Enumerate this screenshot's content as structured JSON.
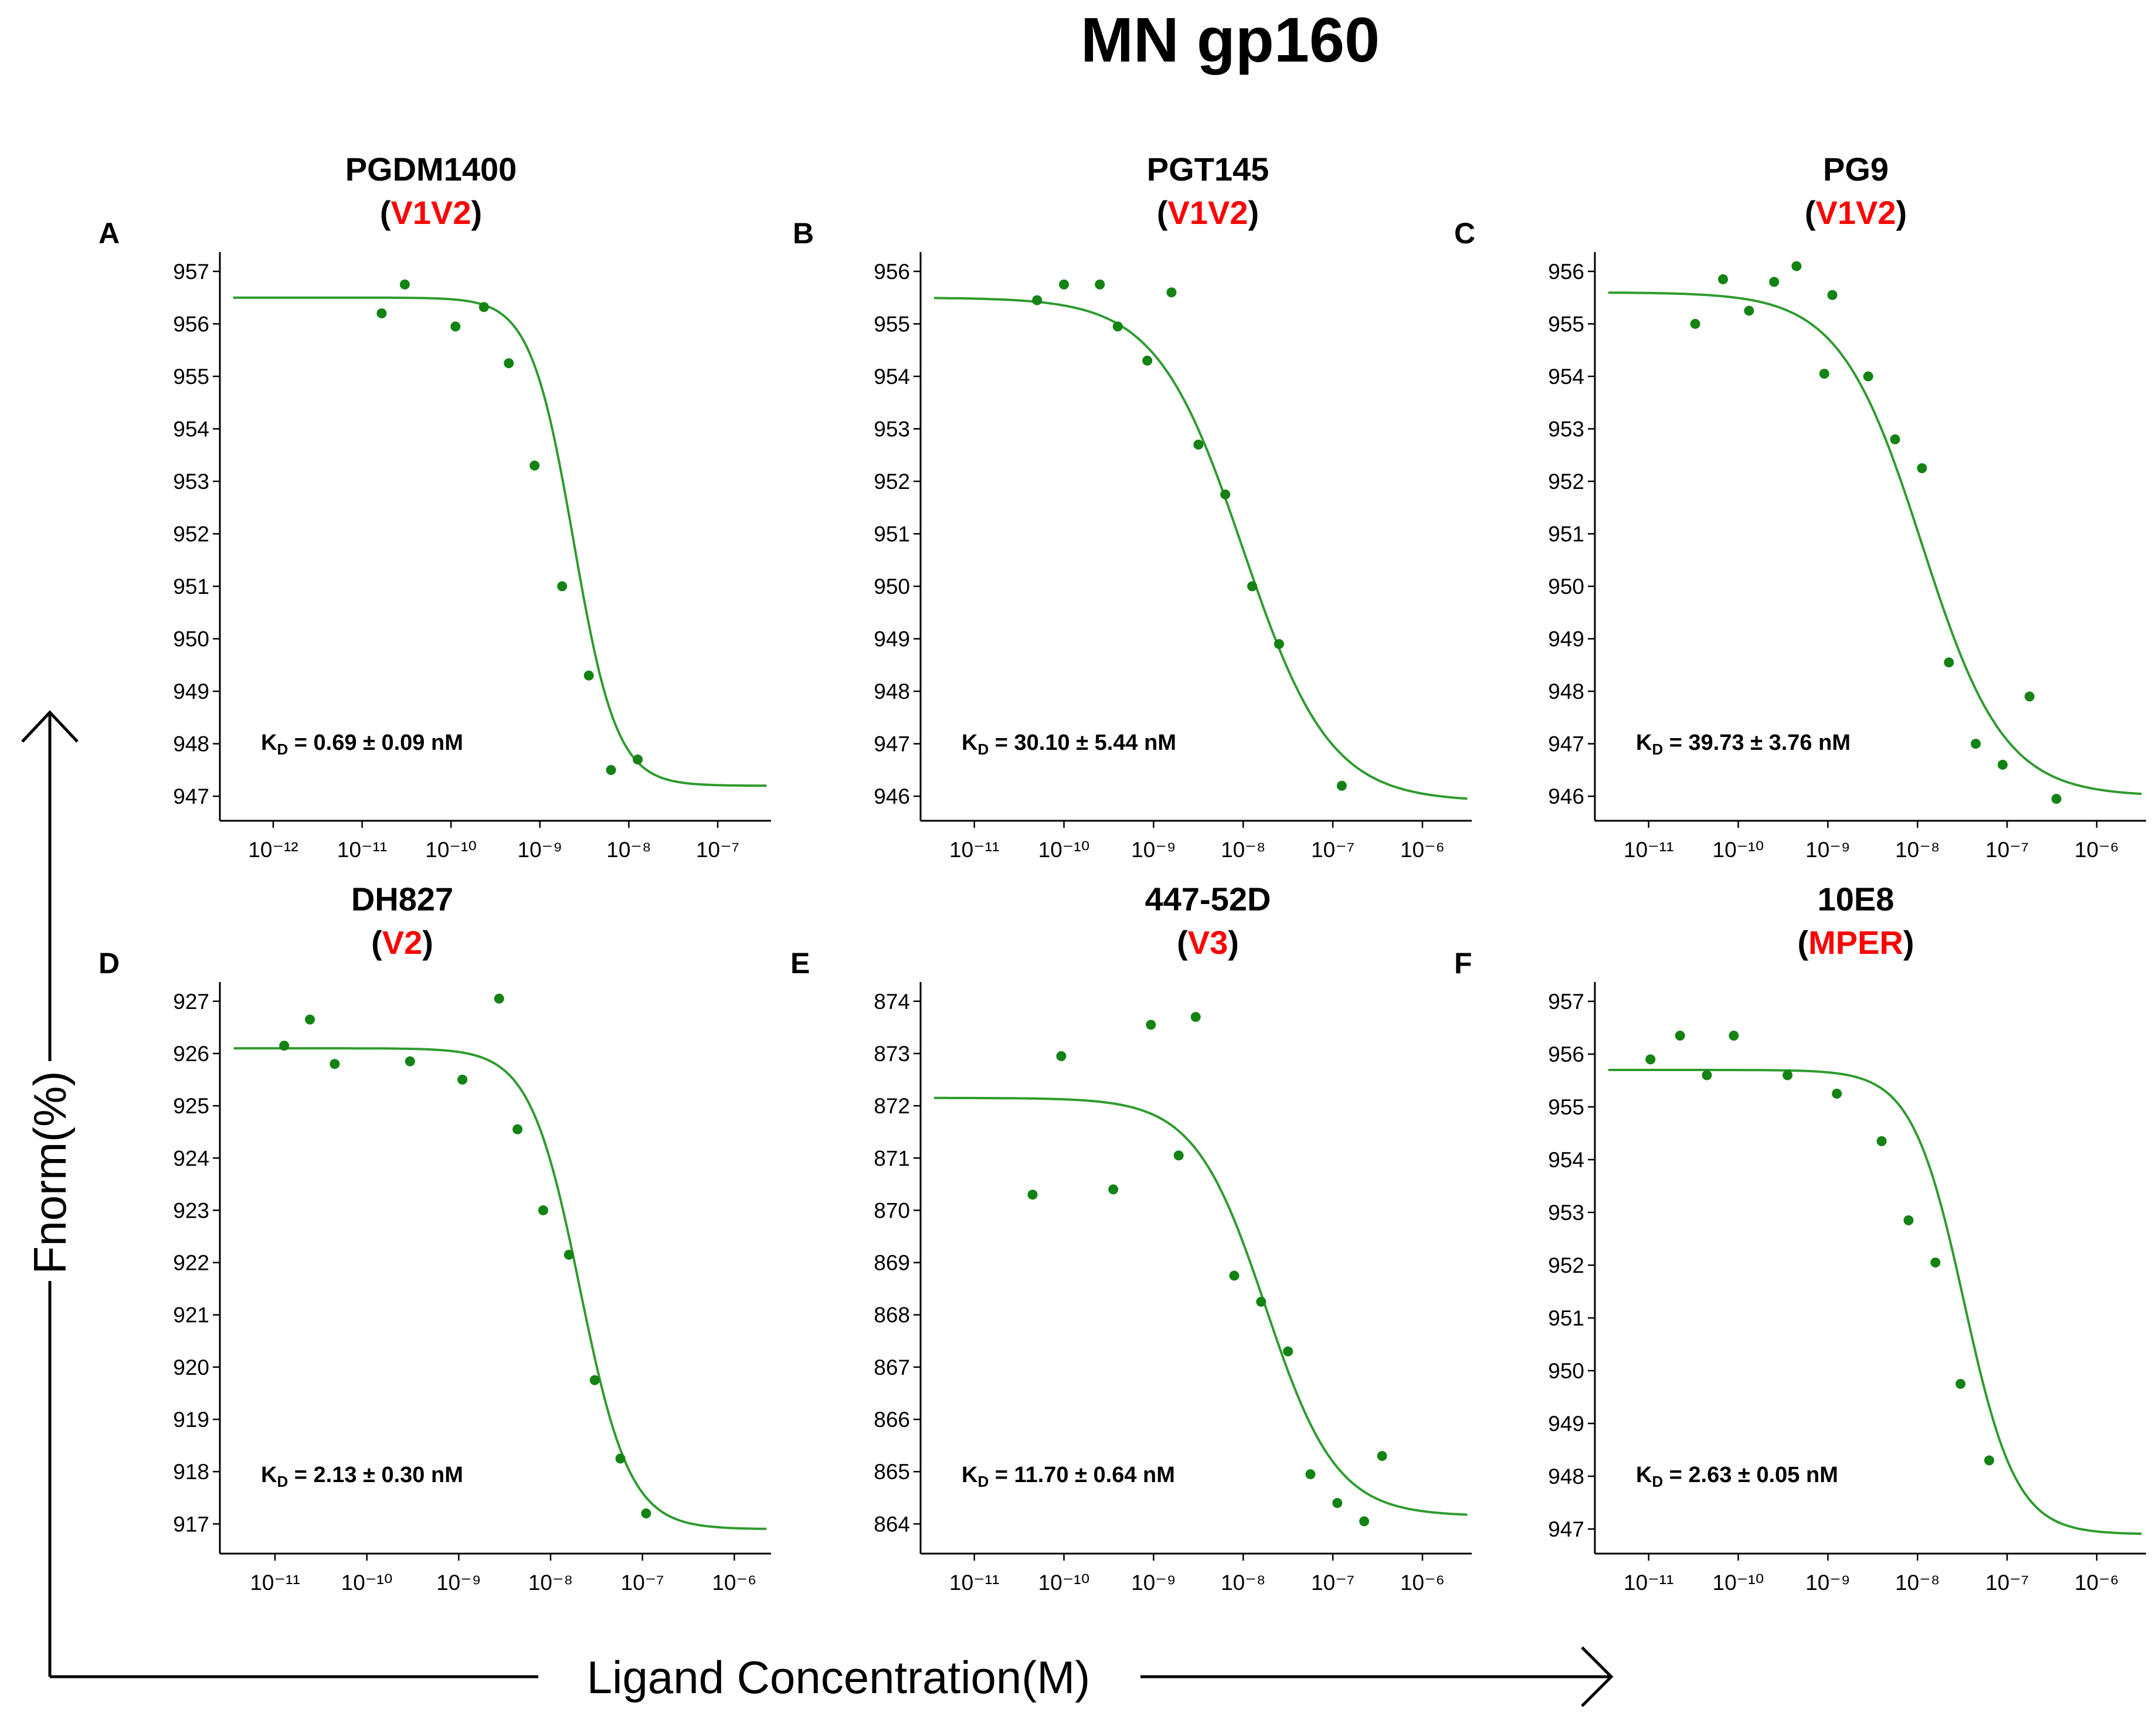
{
  "title": "MN gp160",
  "y_axis_label": "Fnorm(%)",
  "x_axis_label": "Ligand Concentration(M)",
  "colors": {
    "curve": "#2e9b2e",
    "point": "#138313",
    "region": "#ff0000",
    "axis": "#000000"
  },
  "chart_data": [
    {
      "type": "scatter",
      "panel_letter": "A",
      "antibody": "PGDM1400",
      "region": "V1V2",
      "kd_prefix": "K",
      "kd_sub": "D",
      "kd_value": "= 0.69 ± 0.09 nM",
      "x_scale": "log",
      "x_log_range": [
        -12.6,
        -6.4
      ],
      "ylim": [
        946.7,
        957.2
      ],
      "yticks": [
        947,
        948,
        949,
        950,
        951,
        952,
        953,
        954,
        955,
        956,
        957
      ],
      "xticks": [
        -12,
        -11,
        -10,
        -9,
        -8,
        -7
      ],
      "points": [
        [
          -10.78,
          956.2
        ],
        [
          -10.52,
          956.75
        ],
        [
          -9.95,
          955.95
        ],
        [
          -9.63,
          956.32
        ],
        [
          -9.35,
          955.25
        ],
        [
          -9.06,
          953.3
        ],
        [
          -8.75,
          951.0
        ],
        [
          -8.45,
          949.3
        ],
        [
          -8.2,
          947.5
        ],
        [
          -7.9,
          947.7
        ]
      ],
      "fit": {
        "top": 956.5,
        "bottom": 947.2,
        "log_ec50": -8.62,
        "hill": 1.8
      }
    },
    {
      "type": "scatter",
      "panel_letter": "B",
      "antibody": "PGT145",
      "region": "V1V2",
      "kd_prefix": "K",
      "kd_sub": "D",
      "kd_value": "= 30.10 ± 5.44 nM",
      "x_scale": "log",
      "x_log_range": [
        -11.6,
        -5.45
      ],
      "ylim": [
        945.7,
        956.2
      ],
      "yticks": [
        946,
        947,
        948,
        949,
        950,
        951,
        952,
        953,
        954,
        955,
        956
      ],
      "xticks": [
        -11,
        -10,
        -9,
        -8,
        -7,
        -6
      ],
      "points": [
        [
          -10.3,
          955.45
        ],
        [
          -10.0,
          955.75
        ],
        [
          -9.6,
          955.75
        ],
        [
          -9.4,
          954.95
        ],
        [
          -9.07,
          954.3
        ],
        [
          -8.8,
          955.6
        ],
        [
          -8.5,
          952.7
        ],
        [
          -8.2,
          951.75
        ],
        [
          -7.9,
          950.0
        ],
        [
          -7.6,
          948.9
        ],
        [
          -6.9,
          946.2
        ]
      ],
      "fit": {
        "top": 955.5,
        "bottom": 945.9,
        "log_ec50": -8.0,
        "hill": 0.9
      }
    },
    {
      "type": "scatter",
      "panel_letter": "C",
      "antibody": "PG9",
      "region": "V1V2",
      "kd_prefix": "K",
      "kd_sub": "D",
      "kd_value": "= 39.73 ± 3.76 nM",
      "x_scale": "log",
      "x_log_range": [
        -11.6,
        -5.45
      ],
      "ylim": [
        945.7,
        956.2
      ],
      "yticks": [
        946,
        947,
        948,
        949,
        950,
        951,
        952,
        953,
        954,
        955,
        956
      ],
      "xticks": [
        -11,
        -10,
        -9,
        -8,
        -7,
        -6
      ],
      "points": [
        [
          -10.48,
          955.0
        ],
        [
          -10.17,
          955.85
        ],
        [
          -9.88,
          955.25
        ],
        [
          -9.6,
          955.8
        ],
        [
          -9.35,
          956.1
        ],
        [
          -8.95,
          955.55
        ],
        [
          -9.04,
          954.05
        ],
        [
          -8.55,
          954.0
        ],
        [
          -8.25,
          952.8
        ],
        [
          -7.95,
          952.25
        ],
        [
          -7.65,
          948.55
        ],
        [
          -7.35,
          947.0
        ],
        [
          -7.05,
          946.6
        ],
        [
          -6.75,
          947.9
        ],
        [
          -6.45,
          945.95
        ]
      ],
      "fit": {
        "top": 955.6,
        "bottom": 946.0,
        "log_ec50": -7.95,
        "hill": 0.95
      }
    },
    {
      "type": "scatter",
      "panel_letter": "D",
      "antibody": "DH827",
      "region": "V2",
      "kd_prefix": "K",
      "kd_sub": "D",
      "kd_value": "= 2.13 ± 0.30 nM",
      "x_scale": "log",
      "x_log_range": [
        -11.6,
        -5.6
      ],
      "ylim": [
        916.6,
        927.2
      ],
      "yticks": [
        917,
        918,
        919,
        920,
        921,
        922,
        923,
        924,
        925,
        926,
        927
      ],
      "xticks": [
        -11,
        -10,
        -9,
        -8,
        -7,
        -6
      ],
      "points": [
        [
          -10.9,
          926.15
        ],
        [
          -10.62,
          926.65
        ],
        [
          -10.35,
          925.8
        ],
        [
          -9.53,
          925.85
        ],
        [
          -8.96,
          925.5
        ],
        [
          -8.56,
          927.05
        ],
        [
          -8.36,
          924.55
        ],
        [
          -8.08,
          923.0
        ],
        [
          -7.8,
          922.15
        ],
        [
          -7.52,
          919.75
        ],
        [
          -7.24,
          918.25
        ],
        [
          -6.96,
          917.2
        ]
      ],
      "fit": {
        "top": 926.1,
        "bottom": 916.9,
        "log_ec50": -7.68,
        "hill": 1.6
      }
    },
    {
      "type": "scatter",
      "panel_letter": "E",
      "antibody": "447-52D",
      "region": "V3",
      "kd_prefix": "K",
      "kd_sub": "D",
      "kd_value": "= 11.70 ± 0.64 nM",
      "x_scale": "log",
      "x_log_range": [
        -11.6,
        -5.45
      ],
      "ylim": [
        863.6,
        874.2
      ],
      "yticks": [
        864,
        865,
        866,
        867,
        868,
        869,
        870,
        871,
        872,
        873,
        874
      ],
      "xticks": [
        -11,
        -10,
        -9,
        -8,
        -7,
        -6
      ],
      "points": [
        [
          -10.35,
          870.3
        ],
        [
          -10.03,
          872.95
        ],
        [
          -9.45,
          870.4
        ],
        [
          -9.03,
          873.55
        ],
        [
          -8.72,
          871.05
        ],
        [
          -8.53,
          873.7
        ],
        [
          -8.1,
          868.75
        ],
        [
          -7.8,
          868.25
        ],
        [
          -7.5,
          867.3
        ],
        [
          -7.25,
          864.95
        ],
        [
          -6.95,
          864.4
        ],
        [
          -6.65,
          864.05
        ],
        [
          -6.45,
          865.3
        ]
      ],
      "fit": {
        "top": 872.15,
        "bottom": 864.15,
        "log_ec50": -7.75,
        "hill": 1.1
      }
    },
    {
      "type": "scatter",
      "panel_letter": "F",
      "antibody": "10E8",
      "region": "MPER",
      "kd_prefix": "K",
      "kd_sub": "D",
      "kd_value": "= 2.63 ± 0.05 nM",
      "x_scale": "log",
      "x_log_range": [
        -11.6,
        -5.45
      ],
      "ylim": [
        946.7,
        957.2
      ],
      "yticks": [
        947,
        948,
        949,
        950,
        951,
        952,
        953,
        954,
        955,
        956,
        957
      ],
      "xticks": [
        -11,
        -10,
        -9,
        -8,
        -7,
        -6
      ],
      "points": [
        [
          -10.98,
          955.9
        ],
        [
          -10.65,
          956.35
        ],
        [
          -10.35,
          955.6
        ],
        [
          -10.05,
          956.35
        ],
        [
          -9.45,
          955.6
        ],
        [
          -8.9,
          955.25
        ],
        [
          -8.4,
          954.35
        ],
        [
          -8.1,
          952.85
        ],
        [
          -7.8,
          952.05
        ],
        [
          -7.52,
          949.75
        ],
        [
          -7.2,
          948.3
        ]
      ],
      "fit": {
        "top": 955.7,
        "bottom": 946.9,
        "log_ec50": -7.48,
        "hill": 1.5
      }
    }
  ]
}
